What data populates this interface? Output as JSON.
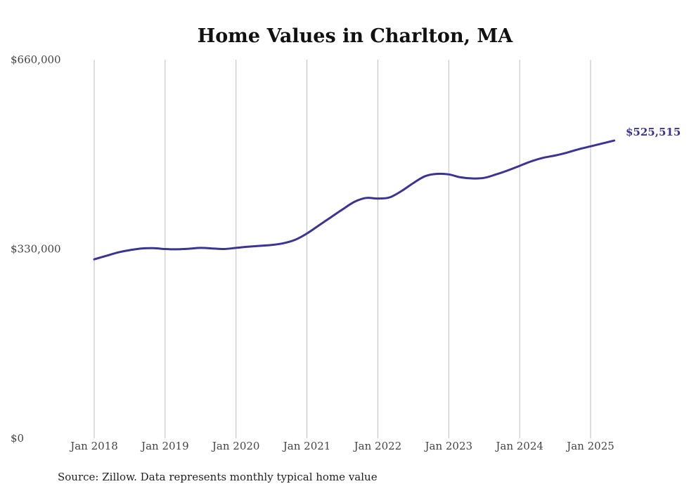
{
  "chart_data": {
    "type": "line",
    "title": "Home Values in Charlton, MA",
    "xlabel": "",
    "ylabel": "",
    "ylim": [
      0,
      660000
    ],
    "y_ticks": [
      {
        "value": 0,
        "label": "$0"
      },
      {
        "value": 330000,
        "label": "$330,000"
      },
      {
        "value": 660000,
        "label": "$660,000"
      }
    ],
    "x_ticks": [
      "Jan 2018",
      "Jan 2019",
      "Jan 2020",
      "Jan 2021",
      "Jan 2022",
      "Jan 2023",
      "Jan 2024",
      "Jan 2025"
    ],
    "grid": "vertical",
    "series": [
      {
        "color": "#3a3494",
        "x": [
          "2018-01",
          "2018-03",
          "2018-05",
          "2018-07",
          "2018-09",
          "2018-11",
          "2019-01",
          "2019-03",
          "2019-05",
          "2019-07",
          "2019-09",
          "2019-11",
          "2020-01",
          "2020-03",
          "2020-05",
          "2020-07",
          "2020-09",
          "2020-11",
          "2021-01",
          "2021-03",
          "2021-05",
          "2021-07",
          "2021-09",
          "2021-11",
          "2022-01",
          "2022-03",
          "2022-05",
          "2022-07",
          "2022-09",
          "2022-11",
          "2023-01",
          "2023-03",
          "2023-05",
          "2023-07",
          "2023-09",
          "2023-11",
          "2024-01",
          "2024-03",
          "2024-05",
          "2024-07",
          "2024-09",
          "2024-11",
          "2025-01",
          "2025-03",
          "2025-05"
        ],
        "values": [
          312000,
          318000,
          324000,
          328000,
          331000,
          331500,
          330000,
          329500,
          330500,
          332000,
          331000,
          330000,
          332000,
          334000,
          335500,
          337000,
          340000,
          346000,
          357000,
          371000,
          385000,
          399000,
          412000,
          419000,
          418000,
          420000,
          431000,
          445000,
          457000,
          461000,
          460000,
          455000,
          453000,
          454000,
          460000,
          467000,
          475000,
          483000,
          489000,
          493000,
          498000,
          504000,
          509000,
          514000,
          519000
        ]
      }
    ],
    "end_label": "$525,515",
    "source": "Source: Zillow. Data represents monthly typical home value"
  }
}
